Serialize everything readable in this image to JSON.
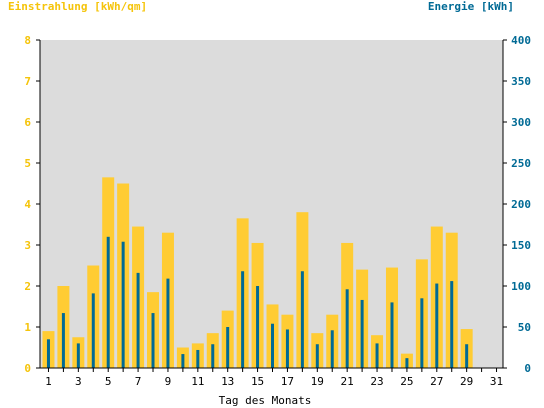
{
  "chart_data": {
    "type": "bar",
    "ylabel_left": "Einstrahlung [kWh/qm]",
    "ylabel_right": "Energie [kWh]",
    "xlabel": "Tag des Monats",
    "ylim_left": [
      0,
      8
    ],
    "ylim_right": [
      0,
      400
    ],
    "yticks_left": [
      "0",
      "1",
      "2",
      "3",
      "4",
      "5",
      "6",
      "7",
      "8"
    ],
    "yticks_right": [
      "0",
      "50",
      "100",
      "150",
      "200",
      "250",
      "300",
      "350",
      "400"
    ],
    "xtick_labels": [
      "1",
      "3",
      "5",
      "7",
      "9",
      "11",
      "13",
      "15",
      "17",
      "19",
      "21",
      "23",
      "25",
      "27",
      "29",
      "31"
    ],
    "grid": false,
    "days": [
      1,
      2,
      3,
      4,
      5,
      6,
      7,
      8,
      9,
      10,
      11,
      12,
      13,
      14,
      15,
      16,
      17,
      18,
      19,
      20,
      21,
      22,
      23,
      24,
      25,
      26,
      27,
      28,
      29,
      30,
      31
    ],
    "series": [
      {
        "name": "Einstrahlung [kWh/qm]",
        "axis": "left",
        "color": "#ffcc33",
        "values": [
          0.9,
          2.0,
          0.75,
          2.5,
          4.65,
          4.5,
          3.45,
          1.85,
          3.3,
          0.5,
          0.6,
          0.85,
          1.4,
          3.65,
          3.05,
          1.55,
          1.3,
          3.8,
          0.85,
          1.3,
          3.05,
          2.4,
          0.8,
          2.45,
          0.35,
          2.65,
          3.45,
          3.3,
          0.95,
          0,
          0
        ]
      },
      {
        "name": "Energie [kWh]",
        "axis": "right",
        "color": "#006a95",
        "values": [
          35,
          67,
          30,
          91,
          160,
          154,
          116,
          67,
          109,
          17,
          22,
          29,
          50,
          118,
          100,
          54,
          47,
          118,
          29,
          46,
          96,
          83,
          30,
          80,
          12,
          85,
          103,
          106,
          29,
          0,
          0
        ]
      }
    ],
    "colors": {
      "plot_bg": "#dcdcdc",
      "left_axis": "#f5c40a",
      "right_axis": "#006a95",
      "bar_left": "#ffcc33",
      "bar_right": "#006a95"
    }
  }
}
